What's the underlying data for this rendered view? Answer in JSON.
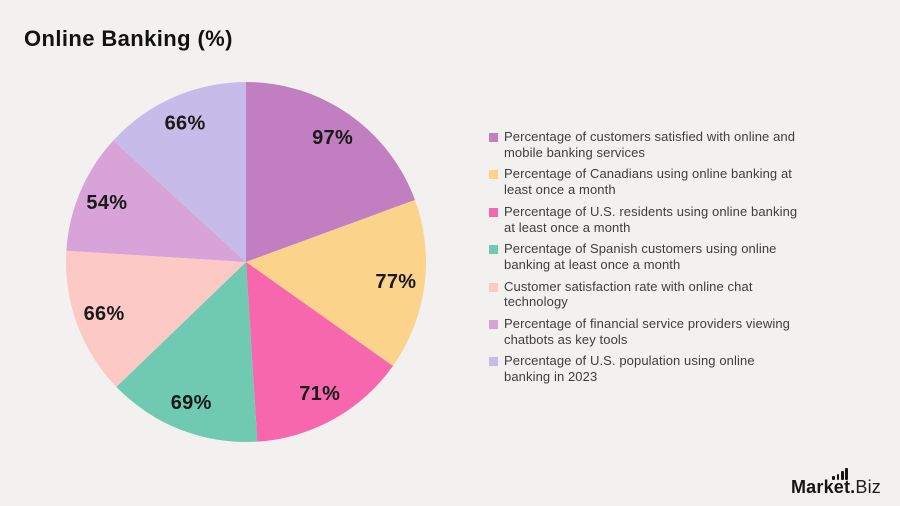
{
  "page": {
    "background": "#f2f1f0"
  },
  "header": {
    "title": "Online Banking (%)"
  },
  "chart_data": {
    "type": "pie",
    "title": "Online Banking (%)",
    "start_angle_deg": 0,
    "direction": "clockwise",
    "legend_position": "right",
    "label_position": "inside",
    "series": [
      {
        "name": "Percentage of customers satisfied with online and mobile banking services",
        "name_lines": [
          "Percentage of customers satisfied with online and",
          "mobile banking services"
        ],
        "value": 97,
        "label": "97%",
        "color": "#c17fc1"
      },
      {
        "name": "Percentage of Canadians using online banking at least once a month",
        "name_lines": [
          "Percentage of Canadians using online banking at",
          "least once a month"
        ],
        "value": 77,
        "label": "77%",
        "color": "#fcd38a"
      },
      {
        "name": "Percentage of U.S. residents using online banking at least once a month",
        "name_lines": [
          "Percentage of U.S. residents using online banking",
          "at least once a month"
        ],
        "value": 71,
        "label": "71%",
        "color": "#f767ad"
      },
      {
        "name": "Percentage of Spanish customers using online banking at least once a month",
        "name_lines": [
          "Percentage of Spanish customers using online",
          "banking at least once a month"
        ],
        "value": 69,
        "label": "69%",
        "color": "#6fcab1"
      },
      {
        "name": "Customer satisfaction rate with online chat technology",
        "name_lines": [
          "Customer satisfaction rate with online chat",
          "technology"
        ],
        "value": 66,
        "label": "66%",
        "color": "#fdc9c4"
      },
      {
        "name": "Percentage of financial service providers viewing chatbots as key tools",
        "name_lines": [
          "Percentage of financial service providers viewing",
          "chatbots as key tools"
        ],
        "value": 54,
        "label": "54%",
        "color": "#d7a3d9"
      },
      {
        "name": "Percentage of U.S. population using online banking in 2023",
        "name_lines": [
          "Percentage of U.S. population using online",
          "banking in 2023"
        ],
        "value": 66,
        "label": "66%",
        "color": "#c7bce9"
      }
    ]
  },
  "branding": {
    "logo_primary": "Market.",
    "logo_secondary": "Biz"
  }
}
